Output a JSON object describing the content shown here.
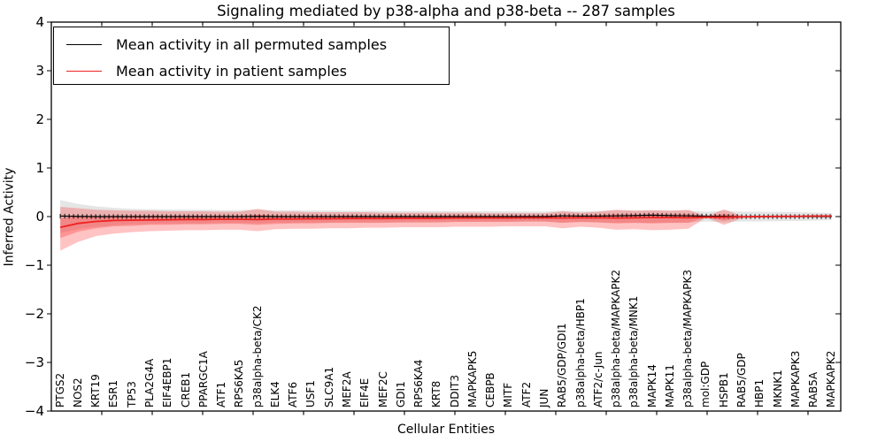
{
  "title": "Signaling mediated by p38-alpha and p38-beta -- 287 samples",
  "legend": {
    "entries": [
      {
        "label": "Mean activity in all permuted samples",
        "color": "#000000"
      },
      {
        "label": "Mean activity in patient samples",
        "color": "#ee2222"
      }
    ]
  },
  "chart_data": {
    "type": "line",
    "title": "Signaling mediated by p38-alpha and p38-beta -- 287 samples",
    "xlabel": "Cellular Entities",
    "ylabel": "Inferred Activity",
    "ylim": [
      -4,
      4
    ],
    "yticks": [
      4,
      3,
      2,
      1,
      0,
      -1,
      -2,
      -3,
      -4
    ],
    "grid": false,
    "legend_position": "upper left",
    "categories": [
      "PTGS2",
      "NOS2",
      "KRT19",
      "ESR1",
      "TP53",
      "PLA2G4A",
      "EIF4EBP1",
      "CREB1",
      "PPARGC1A",
      "ATF1",
      "RPS6KA5",
      "p38alpha-beta/CK2",
      "ELK4",
      "ATF6",
      "USF1",
      "SLC9A1",
      "MEF2A",
      "EIF4E",
      "MEF2C",
      "GDI1",
      "RPS6KA4",
      "KRT8",
      "DDIT3",
      "MAPKAPK5",
      "CEBPB",
      "MITF",
      "ATF2",
      "JUN",
      "RAB5/GDP/GDI1",
      "p38alpha-beta/HBP1",
      "ATF2/c-Jun",
      "p38alpha-beta/MAPKAPK2",
      "p38alpha-beta/MNK1",
      "MAPK14",
      "MAPK11",
      "p38alpha-beta/MAPKAPK3",
      "mol:GDP",
      "HSPB1",
      "RAB5/GDP",
      "HBP1",
      "MKNK1",
      "MAPKAPK3",
      "RAB5A",
      "MAPKAPK2"
    ],
    "series": [
      {
        "name": "Mean activity in all permuted samples",
        "color": "#000000",
        "width": 1.2,
        "marker": "vtick",
        "values": [
          0.01,
          0.005,
          0.0,
          0.0,
          0.0,
          0.0,
          0.0,
          0.0,
          0.0,
          0.0,
          0.0,
          0.005,
          0.0,
          0.0,
          0.0,
          0.0,
          0.0,
          0.0,
          0.0,
          0.0,
          0.0,
          0.0,
          0.0,
          0.0,
          0.0,
          0.0,
          0.0,
          0.0,
          0.015,
          0.01,
          0.01,
          0.015,
          0.02,
          0.03,
          0.02,
          0.015,
          0.01,
          0.005,
          0.0,
          0.0,
          0.0,
          0.0,
          0.0,
          0.0
        ]
      },
      {
        "name": "Mean activity in patient samples",
        "color": "#ee2222",
        "width": 1.8,
        "marker": "none",
        "values": [
          -0.22,
          -0.14,
          -0.1,
          -0.08,
          -0.075,
          -0.07,
          -0.065,
          -0.06,
          -0.06,
          -0.055,
          -0.055,
          -0.06,
          -0.05,
          -0.05,
          -0.045,
          -0.045,
          -0.04,
          -0.04,
          -0.04,
          -0.035,
          -0.035,
          -0.035,
          -0.03,
          -0.03,
          -0.03,
          -0.03,
          -0.025,
          -0.025,
          -0.03,
          -0.025,
          -0.025,
          -0.03,
          -0.025,
          -0.02,
          -0.02,
          -0.025,
          -0.01,
          -0.015,
          -0.005,
          0.0,
          0.005,
          0.005,
          0.01,
          0.01
        ]
      }
    ],
    "bands": [
      {
        "name": "permuted-std-band",
        "color": "rgba(0,0,0,0.10)",
        "upper": [
          0.34,
          0.26,
          0.21,
          0.18,
          0.16,
          0.15,
          0.145,
          0.14,
          0.14,
          0.135,
          0.135,
          0.14,
          0.13,
          0.13,
          0.125,
          0.125,
          0.12,
          0.12,
          0.12,
          0.115,
          0.115,
          0.115,
          0.11,
          0.11,
          0.11,
          0.11,
          0.105,
          0.105,
          0.12,
          0.11,
          0.115,
          0.13,
          0.125,
          0.13,
          0.125,
          0.12,
          0.1,
          0.12,
          0.1,
          0.1,
          0.095,
          0.09,
          0.085,
          0.07
        ],
        "lower": [
          -0.34,
          -0.26,
          -0.21,
          -0.18,
          -0.16,
          -0.15,
          -0.145,
          -0.14,
          -0.14,
          -0.135,
          -0.135,
          -0.14,
          -0.13,
          -0.13,
          -0.125,
          -0.125,
          -0.12,
          -0.12,
          -0.12,
          -0.115,
          -0.115,
          -0.115,
          -0.11,
          -0.11,
          -0.11,
          -0.11,
          -0.105,
          -0.105,
          -0.12,
          -0.11,
          -0.115,
          -0.13,
          -0.125,
          -0.13,
          -0.125,
          -0.12,
          -0.1,
          -0.12,
          -0.1,
          -0.1,
          -0.095,
          -0.09,
          -0.085,
          -0.07
        ]
      },
      {
        "name": "patient-std-band",
        "color": "rgba(255,40,40,0.28)",
        "upper": [
          0.2,
          0.17,
          0.14,
          0.13,
          0.12,
          0.12,
          0.11,
          0.11,
          0.11,
          0.1,
          0.1,
          0.16,
          0.1,
          0.1,
          0.09,
          0.09,
          0.09,
          0.09,
          0.08,
          0.08,
          0.08,
          0.08,
          0.08,
          0.08,
          0.07,
          0.07,
          0.07,
          0.07,
          0.11,
          0.08,
          0.1,
          0.14,
          0.12,
          0.13,
          0.12,
          0.14,
          0.005,
          0.15,
          0.01,
          0.02,
          0.02,
          0.02,
          0.02,
          0.02
        ],
        "lower": [
          -0.7,
          -0.52,
          -0.4,
          -0.35,
          -0.32,
          -0.3,
          -0.29,
          -0.28,
          -0.28,
          -0.27,
          -0.27,
          -0.3,
          -0.26,
          -0.25,
          -0.25,
          -0.24,
          -0.24,
          -0.23,
          -0.23,
          -0.22,
          -0.22,
          -0.22,
          -0.21,
          -0.21,
          -0.21,
          -0.2,
          -0.2,
          -0.2,
          -0.24,
          -0.21,
          -0.23,
          -0.27,
          -0.26,
          -0.28,
          -0.27,
          -0.25,
          -0.02,
          -0.17,
          -0.03,
          -0.02,
          -0.02,
          -0.01,
          -0.01,
          -0.01
        ]
      },
      {
        "name": "patient-inner-band",
        "color": "rgba(255,40,40,0.30)",
        "upper": [
          -0.03,
          0.0,
          0.01,
          0.015,
          0.013,
          0.016,
          0.014,
          0.017,
          0.017,
          0.015,
          0.015,
          0.04,
          0.018,
          0.018,
          0.016,
          0.016,
          0.019,
          0.019,
          0.014,
          0.017,
          0.017,
          0.017,
          0.02,
          0.02,
          0.015,
          0.015,
          0.018,
          0.018,
          0.033,
          0.022,
          0.031,
          0.047,
          0.04,
          0.048,
          0.043,
          0.054,
          -0.003,
          0.059,
          0.002,
          0.009,
          0.012,
          0.012,
          0.015,
          0.015
        ],
        "lower": [
          -0.44,
          -0.31,
          -0.24,
          -0.2,
          -0.19,
          -0.17,
          -0.17,
          -0.16,
          -0.16,
          -0.15,
          -0.15,
          -0.17,
          -0.15,
          -0.14,
          -0.14,
          -0.13,
          -0.13,
          -0.13,
          -0.13,
          -0.12,
          -0.12,
          -0.12,
          -0.11,
          -0.11,
          -0.11,
          -0.11,
          -0.1,
          -0.1,
          -0.13,
          -0.11,
          -0.12,
          -0.14,
          -0.13,
          -0.14,
          -0.13,
          -0.13,
          -0.015,
          -0.085,
          -0.016,
          -0.009,
          -0.006,
          -0.002,
          0.001,
          0.001
        ]
      }
    ]
  }
}
